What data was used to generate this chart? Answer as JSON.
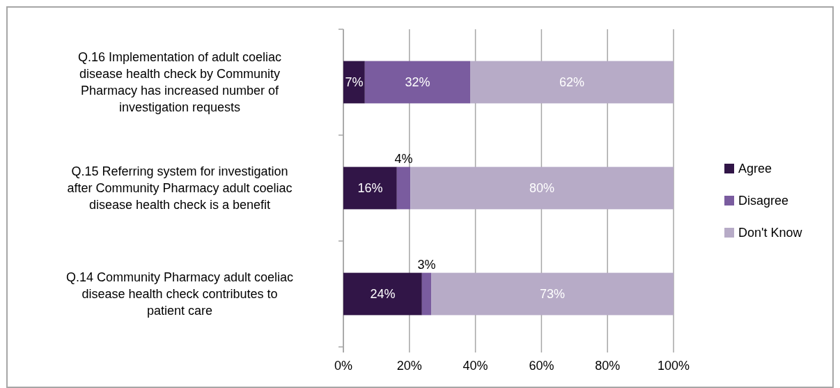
{
  "chart_data": {
    "type": "bar",
    "orientation": "horizontal",
    "stacked": true,
    "categories": [
      "Q.16 Implementation of adult coeliac disease health check by Community Pharmacy has increased number of investigation requests",
      "Q.15 Referring system for investigation after Community Pharmacy adult coeliac disease health check is a benefit",
      "Q.14 Community Pharmacy adult coeliac disease health check contributes to patient care"
    ],
    "series": [
      {
        "name": "Agree",
        "color": "#311547",
        "values": [
          6.5,
          16.2,
          23.8
        ],
        "value_labels": [
          "7%",
          "16%",
          "24%"
        ]
      },
      {
        "name": "Disagree",
        "color": "#7a5c9f",
        "values": [
          31.9,
          4.1,
          2.8
        ],
        "value_labels": [
          "32%",
          "4%",
          "3%"
        ]
      },
      {
        "name": "Don't Know",
        "color": "#b7abc7",
        "values": [
          61.6,
          79.7,
          73.4
        ],
        "value_labels": [
          "62%",
          "80%",
          "73%"
        ]
      }
    ],
    "xlim": [
      0,
      100
    ],
    "xticks": [
      {
        "value": 0,
        "label": "0%"
      },
      {
        "value": 20,
        "label": "20%"
      },
      {
        "value": 40,
        "label": "40%"
      },
      {
        "value": 60,
        "label": "60%"
      },
      {
        "value": 80,
        "label": "80%"
      },
      {
        "value": 100,
        "label": "100%"
      }
    ],
    "grid": "x",
    "legend": "right"
  }
}
